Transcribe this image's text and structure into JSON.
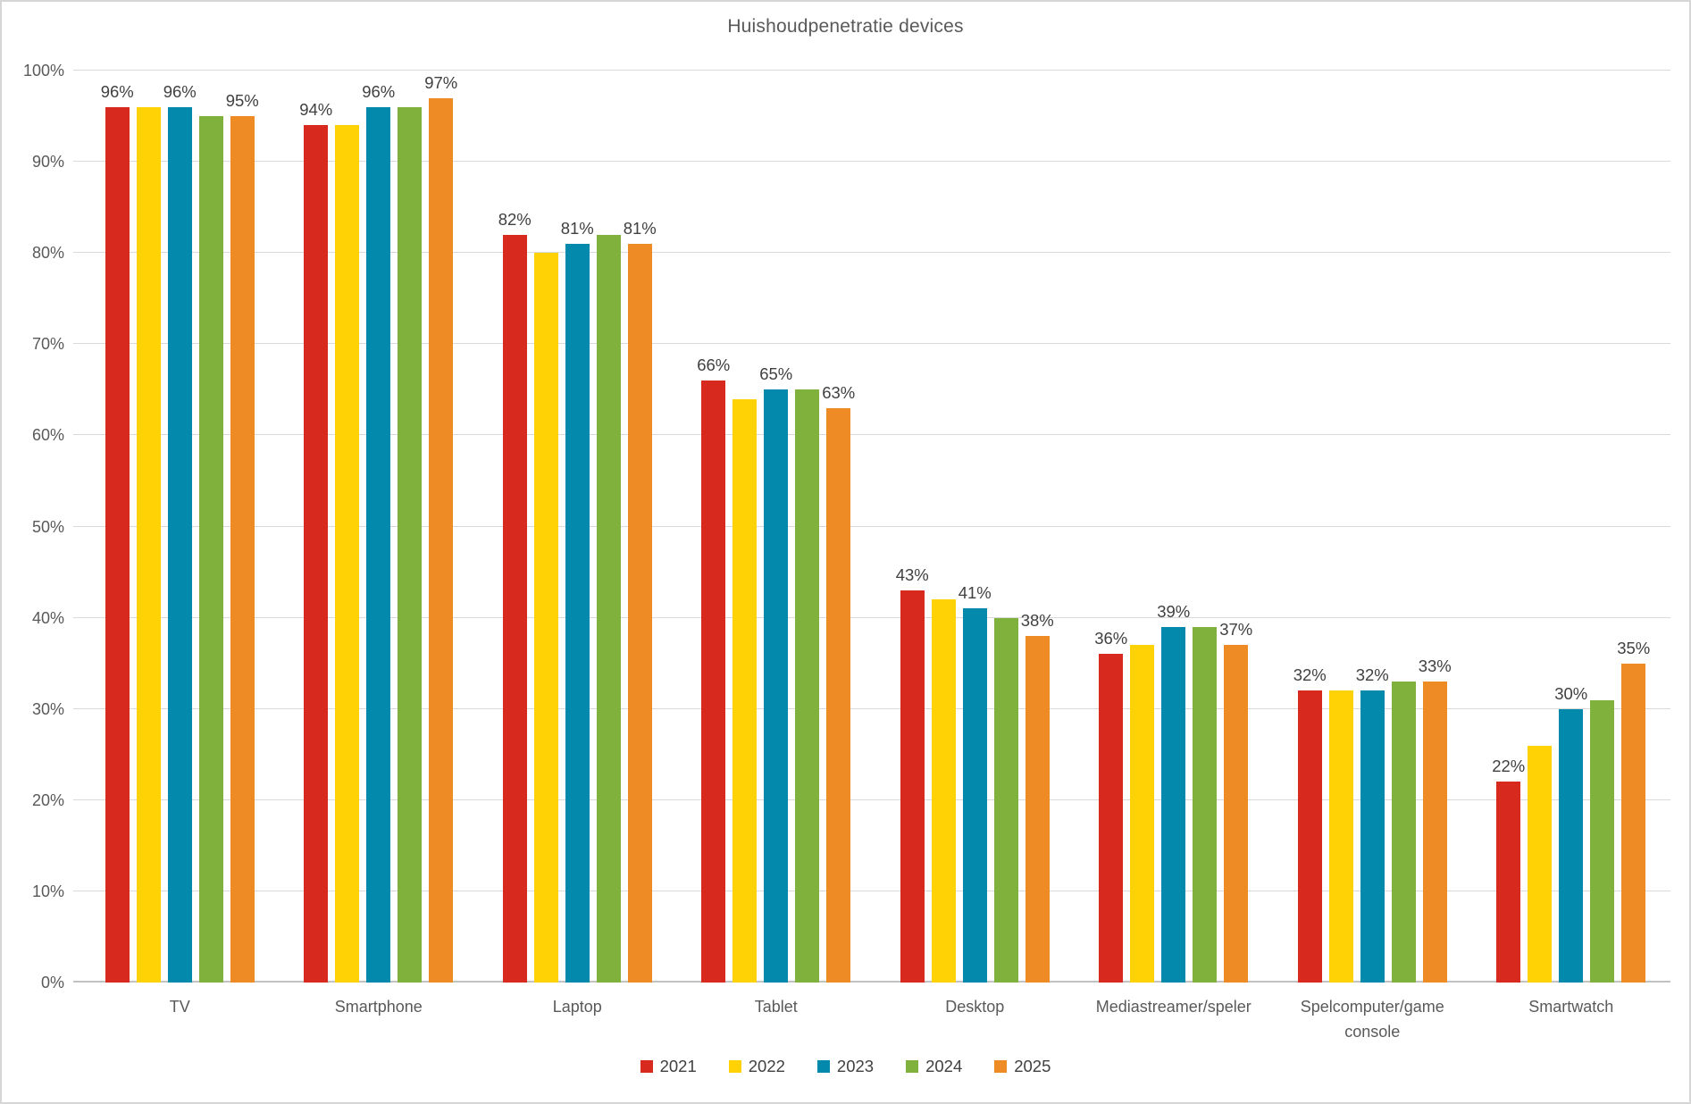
{
  "title": "Huishoudpenetratie devices",
  "chart_data": {
    "type": "bar",
    "title": "Huishoudpenetratie devices",
    "categories": [
      "TV",
      "Smartphone",
      "Laptop",
      "Tablet",
      "Desktop",
      "Mediastreamer/speler",
      "Spelcomputer/game console",
      "Smartwatch"
    ],
    "series": [
      {
        "name": "2021",
        "color": "#d8291f",
        "show_labels": true,
        "values": [
          96,
          94,
          82,
          66,
          43,
          36,
          32,
          22
        ]
      },
      {
        "name": "2022",
        "color": "#ffd205",
        "show_labels": false,
        "values": [
          96,
          94,
          80,
          64,
          42,
          37,
          32,
          26
        ]
      },
      {
        "name": "2023",
        "color": "#0389ab",
        "show_labels": true,
        "values": [
          96,
          96,
          81,
          65,
          41,
          39,
          32,
          30
        ]
      },
      {
        "name": "2024",
        "color": "#7fb13c",
        "show_labels": false,
        "values": [
          95,
          96,
          82,
          65,
          40,
          39,
          33,
          31
        ]
      },
      {
        "name": "2025",
        "color": "#ef8b25",
        "show_labels": true,
        "values": [
          95,
          97,
          81,
          63,
          38,
          37,
          33,
          35
        ]
      }
    ],
    "xlabel": "",
    "ylabel": "",
    "ylim": [
      0,
      100
    ],
    "yticks": [
      "0%",
      "10%",
      "20%",
      "30%",
      "40%",
      "50%",
      "60%",
      "70%",
      "80%",
      "90%",
      "100%"
    ],
    "ytick_step": 10,
    "data_label_format": "percent",
    "data_label_series": [
      "2021",
      "2023",
      "2025"
    ],
    "grid": true,
    "legend_position": "bottom"
  },
  "colors": {
    "title_text": "#595959",
    "axis_text": "#595959",
    "data_label_text": "#404040",
    "gridline": "#d9d9d9",
    "axis_line": "#c2c2c2",
    "background": "#ffffff",
    "border": "#d6d6d6"
  }
}
